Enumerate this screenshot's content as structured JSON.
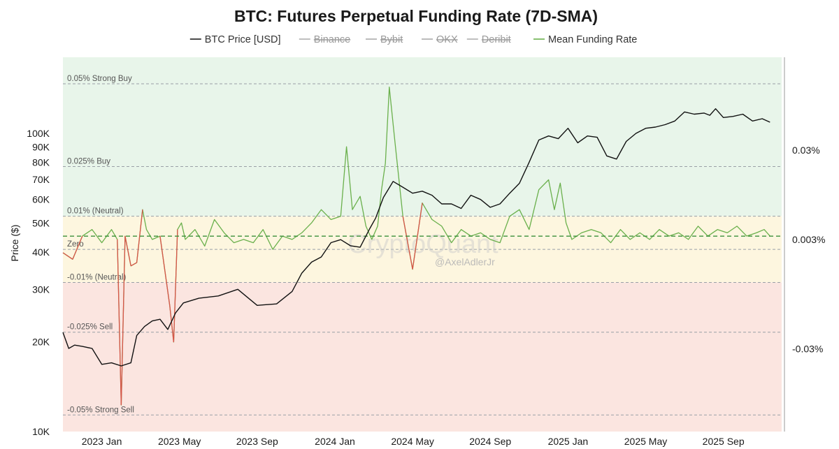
{
  "chart_data": {
    "type": "line",
    "title": "BTC: Futures Perpetual Funding Rate (7D-SMA)",
    "ylabel": "Price ($)",
    "legend": [
      {
        "name": "BTC Price [USD]",
        "color": "#111111",
        "active": true
      },
      {
        "name": "Binance",
        "color": "#888888",
        "active": false
      },
      {
        "name": "Bybit",
        "color": "#888888",
        "active": false
      },
      {
        "name": "OKX",
        "color": "#888888",
        "active": false
      },
      {
        "name": "Deribit",
        "color": "#888888",
        "active": false
      },
      {
        "name": "Mean Funding Rate",
        "color": "#6ab04c",
        "active": true
      }
    ],
    "x_ticks": [
      "2023 Jan",
      "2023 May",
      "2023 Sep",
      "2024 Jan",
      "2024 May",
      "2024 Sep",
      "2025 Jan",
      "2025 May",
      "2025 Sep"
    ],
    "x_range": [
      0,
      37
    ],
    "x_tick_positions": [
      2,
      6,
      10,
      14,
      18,
      22,
      26,
      30,
      34
    ],
    "y_left": {
      "scale": "log",
      "range": [
        10000,
        180000
      ],
      "ticks": [
        {
          "value": 10000,
          "label": "10K"
        },
        {
          "value": 20000,
          "label": "20K"
        },
        {
          "value": 30000,
          "label": "30K"
        },
        {
          "value": 40000,
          "label": "40K"
        },
        {
          "value": 50000,
          "label": "50K"
        },
        {
          "value": 60000,
          "label": "60K"
        },
        {
          "value": 70000,
          "label": "70K"
        },
        {
          "value": 80000,
          "label": "80K"
        },
        {
          "value": 90000,
          "label": "90K"
        },
        {
          "value": 100000,
          "label": "100K"
        }
      ]
    },
    "y_right": {
      "scale": "linear",
      "range": [
        -0.055,
        0.058
      ],
      "ticks": [
        {
          "value": 0.03,
          "label": "0.03%"
        },
        {
          "value": 0.003,
          "label": "0.003%"
        },
        {
          "value": -0.03,
          "label": "-0.03%"
        }
      ]
    },
    "bands": [
      {
        "from": 0.01,
        "to": 0.058,
        "color": "#e8f5ea"
      },
      {
        "from": -0.01,
        "to": 0.01,
        "color": "#fdf6df"
      },
      {
        "from": -0.055,
        "to": -0.01,
        "color": "#fbe5e0"
      }
    ],
    "reference_lines": [
      {
        "value": 0.05,
        "label": "0.05% Strong Buy"
      },
      {
        "value": 0.025,
        "label": "0.025% Buy"
      },
      {
        "value": 0.01,
        "label": "0.01% (Neutral)"
      },
      {
        "value": 0.0,
        "label": "Zero"
      },
      {
        "value": -0.01,
        "label": "-0.01% (Neutral)"
      },
      {
        "value": -0.025,
        "label": "-0.025% Sell"
      },
      {
        "value": -0.05,
        "label": "-0.05% Strong Sell"
      }
    ],
    "mean_line": {
      "value": 0.004,
      "color": "#3a8f3a"
    },
    "price_series": {
      "name": "BTC Price [USD]",
      "x": [
        0,
        0.3,
        0.6,
        1,
        1.5,
        2,
        2.5,
        3,
        3.5,
        3.8,
        4.2,
        4.6,
        5,
        5.4,
        5.8,
        6.2,
        7,
        8,
        9,
        10,
        11,
        11.8,
        12.3,
        12.8,
        13.3,
        13.8,
        14.3,
        14.8,
        15.3,
        15.8,
        16.1,
        16.5,
        17,
        17.5,
        18,
        18.5,
        19,
        19.5,
        20,
        20.5,
        21,
        21.5,
        22,
        22.5,
        23,
        23.5,
        24,
        24.5,
        25,
        25.5,
        26,
        26.5,
        27,
        27.5,
        28,
        28.5,
        29,
        29.5,
        30,
        30.5,
        31,
        31.5,
        32,
        32.5,
        33,
        33.3,
        33.6,
        34,
        34.5,
        35,
        35.5,
        36,
        36.4
      ],
      "y": [
        21500,
        19000,
        19500,
        19300,
        19000,
        16800,
        17000,
        16600,
        17000,
        21000,
        22500,
        23500,
        23800,
        22000,
        25000,
        27000,
        28000,
        28500,
        30000,
        26500,
        26800,
        29500,
        34000,
        37000,
        38500,
        43000,
        44000,
        42000,
        41500,
        48000,
        52000,
        61000,
        69000,
        66000,
        63000,
        64000,
        62000,
        58000,
        58000,
        56000,
        62000,
        60000,
        56500,
        58000,
        63000,
        68000,
        80000,
        95000,
        98000,
        96000,
        104000,
        93000,
        98000,
        97000,
        84000,
        82000,
        94000,
        100000,
        104000,
        105000,
        107000,
        110000,
        118000,
        116000,
        117000,
        115000,
        121000,
        113000,
        114000,
        116000,
        110000,
        112000,
        109000
      ]
    },
    "funding_series": {
      "name": "Mean Funding Rate",
      "x": [
        0,
        0.5,
        1,
        1.5,
        2,
        2.5,
        2.8,
        3,
        3.2,
        3.5,
        3.8,
        4.1,
        4.3,
        4.6,
        5,
        5.5,
        5.7,
        5.9,
        6.1,
        6.3,
        6.8,
        7.3,
        7.8,
        8.3,
        8.8,
        9.3,
        9.8,
        10.3,
        10.8,
        11.3,
        11.8,
        12.3,
        12.8,
        13.3,
        13.8,
        14.3,
        14.6,
        14.9,
        15.3,
        15.6,
        15.9,
        16.2,
        16.4,
        16.6,
        16.8,
        17.1,
        17.5,
        18,
        18.5,
        19,
        19.5,
        20,
        20.5,
        21,
        21.5,
        22,
        22.5,
        23,
        23.5,
        24,
        24.5,
        25,
        25.3,
        25.6,
        25.9,
        26.2,
        26.7,
        27.2,
        27.7,
        28.2,
        28.7,
        29.2,
        29.7,
        30.2,
        30.7,
        31.2,
        31.7,
        32.2,
        32.7,
        33.2,
        33.7,
        34.2,
        34.7,
        35.2,
        35.7,
        36.1,
        36.4
      ],
      "y": [
        -0.001,
        -0.003,
        0.004,
        0.006,
        0.002,
        0.006,
        0.003,
        -0.047,
        0.004,
        -0.005,
        -0.004,
        0.012,
        0.006,
        0.003,
        0.004,
        -0.017,
        -0.028,
        0.006,
        0.008,
        0.003,
        0.006,
        0.001,
        0.009,
        0.005,
        0.002,
        0.003,
        0.002,
        0.006,
        0.0,
        0.004,
        0.003,
        0.005,
        0.008,
        0.012,
        0.009,
        0.01,
        0.031,
        0.012,
        0.016,
        0.007,
        0.003,
        0.007,
        0.018,
        0.026,
        0.049,
        0.032,
        0.01,
        -0.006,
        0.014,
        0.009,
        0.007,
        0.002,
        0.006,
        0.004,
        0.005,
        0.003,
        0.002,
        0.01,
        0.012,
        0.006,
        0.018,
        0.021,
        0.012,
        0.02,
        0.008,
        0.003,
        0.005,
        0.006,
        0.005,
        0.002,
        0.006,
        0.003,
        0.005,
        0.003,
        0.006,
        0.004,
        0.005,
        0.003,
        0.007,
        0.004,
        0.006,
        0.005,
        0.007,
        0.004,
        0.005,
        0.006,
        0.004
      ]
    },
    "negative_color": "#d9554a",
    "watermark": "CryptoQuant",
    "attribution": "@AxelAdlerJr"
  }
}
